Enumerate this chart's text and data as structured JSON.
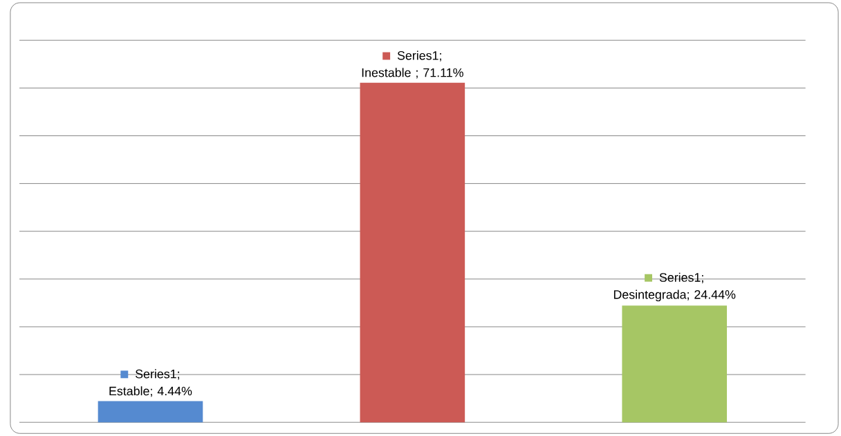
{
  "chart_data": {
    "type": "bar",
    "categories": [
      null,
      null,
      null
    ],
    "values": [
      4.44,
      71.11,
      24.44
    ],
    "colors": [
      "#558ad0",
      "#cc5a55",
      "#a6c664"
    ],
    "value_labels": [
      "Series1; Estable; 4.44%",
      "Series1; Inestable ; 71.11%",
      "Series1; Desintegrada; 24.44%"
    ],
    "ylim": [
      0,
      80
    ],
    "yticks": [
      {
        "value": 0,
        "label": null
      },
      {
        "value": 10,
        "label": null
      },
      {
        "value": 20,
        "label": null
      },
      {
        "value": 30,
        "label": null
      },
      {
        "value": 40,
        "label": null
      },
      {
        "value": 50,
        "label": null
      },
      {
        "value": 60,
        "label": null
      },
      {
        "value": 70,
        "label": null
      },
      {
        "value": 80,
        "label": null
      }
    ],
    "grid": "y"
  }
}
